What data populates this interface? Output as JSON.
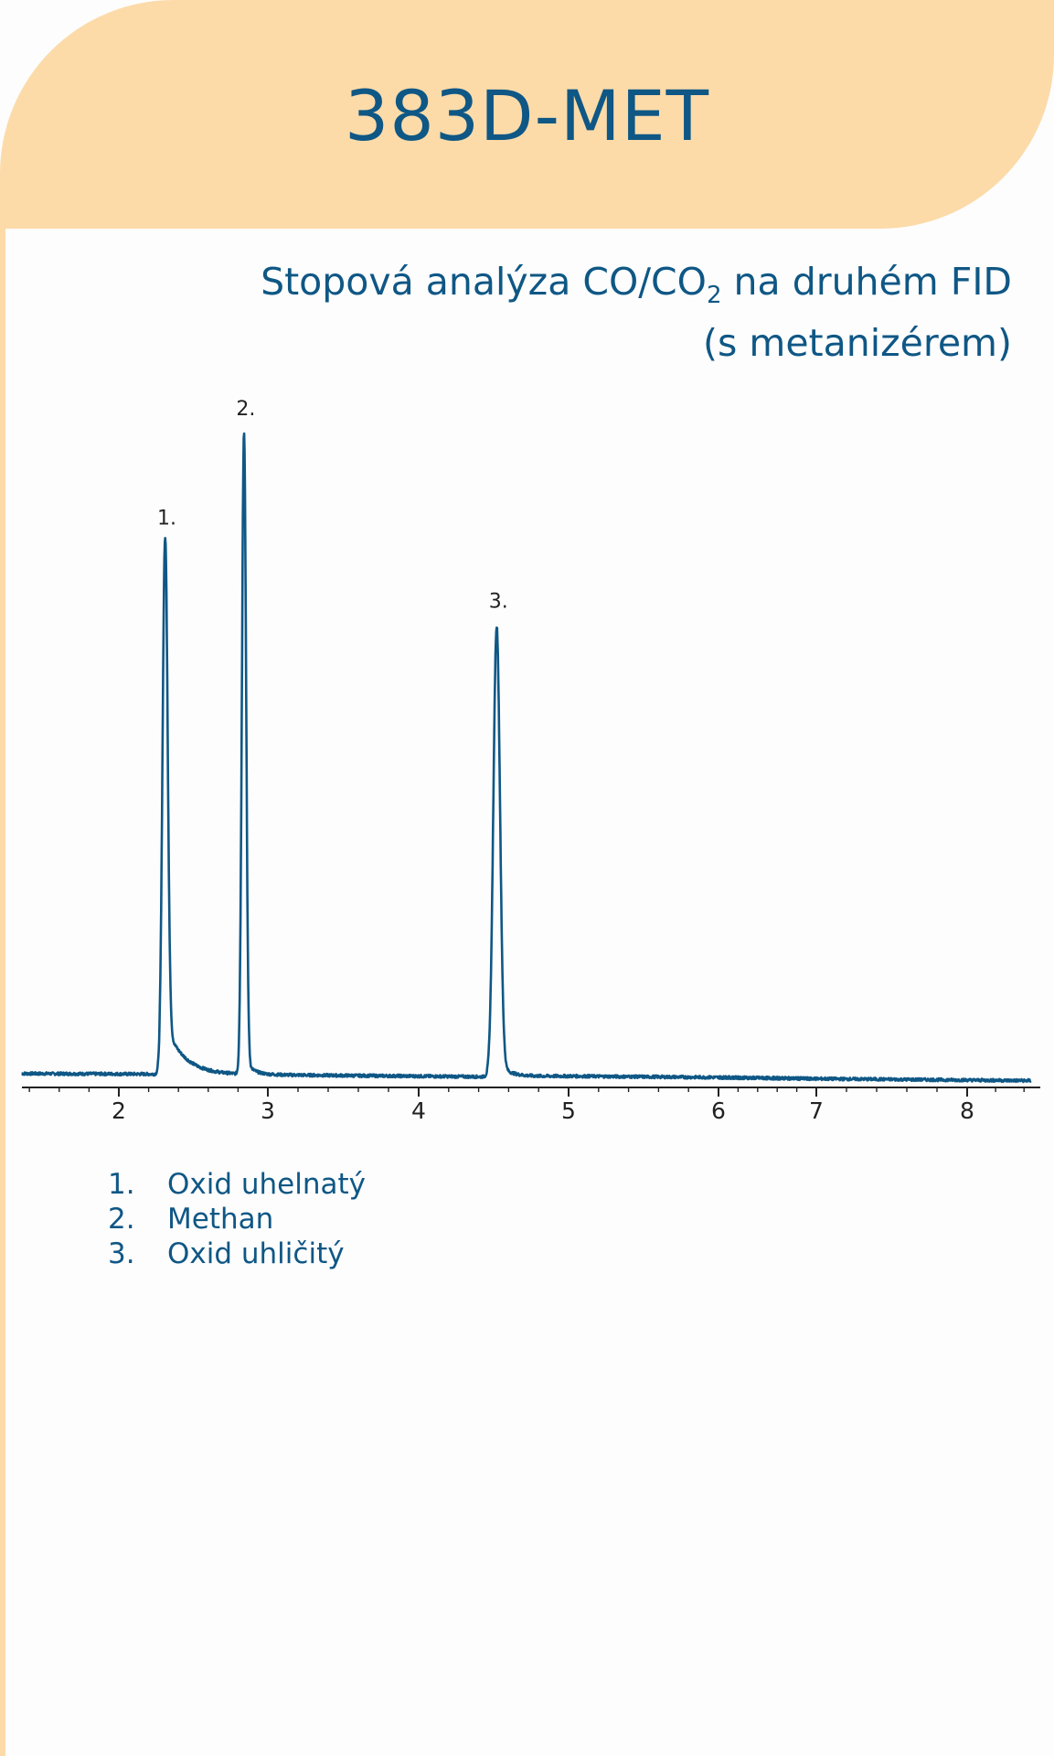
{
  "header": {
    "title": "383D-MET"
  },
  "colors": {
    "accent": "#0f5785",
    "header_bg": "#fcdba9",
    "axis": "#222222"
  },
  "chart_data": {
    "type": "line",
    "title_line1_pre": "Stopová analýza CO/CO",
    "title_line1_sub": "2",
    "title_line1_post": " na druhém FID",
    "title_line2": "(s metanizérem)",
    "xlabel": "",
    "ylabel": "",
    "xlim": [
      1.35,
      8.45
    ],
    "ylim": [
      0,
      100
    ],
    "x_ticks": [
      "2",
      "3",
      "4",
      "5",
      "6",
      "7",
      "8"
    ],
    "grid": false,
    "series": [
      {
        "baseline": [
          [
            1.35,
            0.6
          ],
          [
            2.3,
            0.5
          ],
          [
            3.0,
            0.4
          ],
          [
            4.4,
            0.1
          ],
          [
            5.0,
            0.2
          ],
          [
            8.4,
            -0.5
          ]
        ],
        "peaks": [
          {
            "label": "1.",
            "x": 2.31,
            "height": 83,
            "width": 0.017,
            "tail_amp": 8,
            "tail_decay": 0.12
          },
          {
            "label": "2.",
            "x": 2.84,
            "height": 100,
            "width": 0.014,
            "tail_amp": 2.5,
            "tail_decay": 0.05
          },
          {
            "label": "3.",
            "x": 4.52,
            "height": 70,
            "width": 0.022,
            "tail_amp": 2.5,
            "tail_decay": 0.07
          }
        ]
      }
    ]
  },
  "legend": [
    {
      "num": "1.",
      "name": "Oxid uhelnatý"
    },
    {
      "num": "2.",
      "name": "Methan"
    },
    {
      "num": "3.",
      "name": "Oxid uhličitý"
    }
  ]
}
